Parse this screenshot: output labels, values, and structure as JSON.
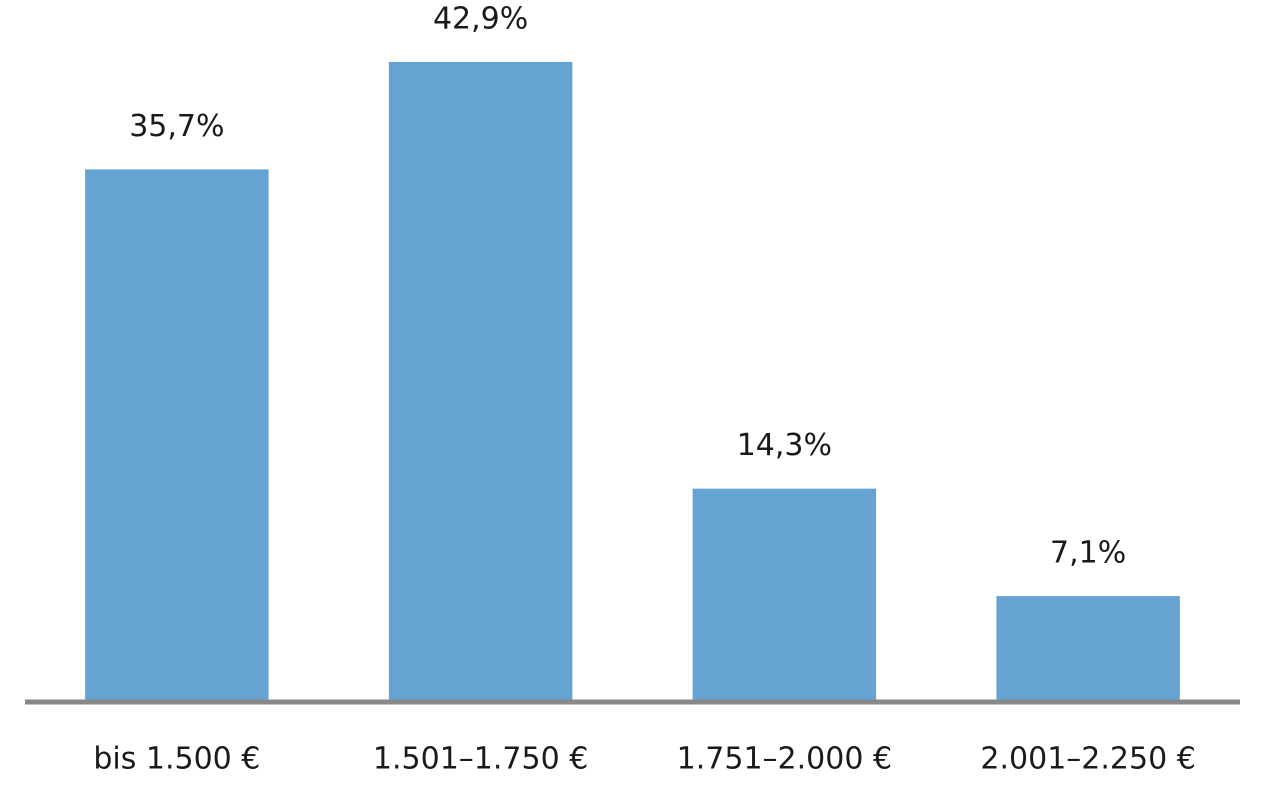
{
  "chart_data": {
    "type": "bar",
    "categories": [
      "bis 1.500 €",
      "1.501–1.750 €",
      "1.751–2.000 €",
      "2.001–2.250 €"
    ],
    "values": [
      35.7,
      42.9,
      14.3,
      7.1
    ],
    "value_labels": [
      "35,7%",
      "42,9%",
      "14,3%",
      "7,1%"
    ],
    "color": "#65a4d2"
  }
}
